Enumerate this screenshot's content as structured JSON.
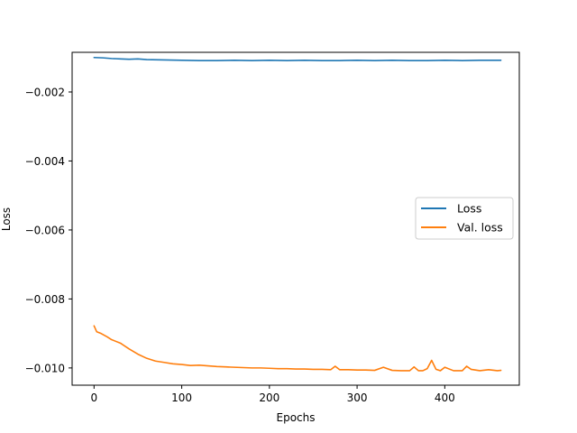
{
  "chart_data": {
    "type": "line",
    "title": "",
    "xlabel": "Epochs",
    "ylabel": "Loss",
    "xlim": [
      -25,
      485
    ],
    "ylim": [
      -0.0105,
      -0.00085
    ],
    "xticks": [
      0,
      100,
      200,
      300,
      400
    ],
    "xtick_labels": [
      "0",
      "100",
      "200",
      "300",
      "400"
    ],
    "yticks": [
      -0.002,
      -0.004,
      -0.006,
      -0.008,
      -0.01
    ],
    "ytick_labels": [
      "−0.002",
      "−0.004",
      "−0.006",
      "−0.008",
      "−0.010"
    ],
    "legend": {
      "placement": "center-right"
    },
    "grid": false,
    "series": [
      {
        "name": "Loss",
        "color": "#1f77b4",
        "x": [
          0,
          10,
          20,
          30,
          40,
          50,
          60,
          80,
          100,
          120,
          140,
          160,
          180,
          200,
          220,
          240,
          260,
          280,
          300,
          320,
          340,
          360,
          380,
          400,
          420,
          440,
          464
        ],
        "y": [
          -0.001,
          -0.00101,
          -0.00103,
          -0.00104,
          -0.00105,
          -0.00104,
          -0.00106,
          -0.00107,
          -0.00108,
          -0.00109,
          -0.00109,
          -0.00108,
          -0.00109,
          -0.00108,
          -0.00109,
          -0.00108,
          -0.00109,
          -0.00109,
          -0.00108,
          -0.00109,
          -0.00108,
          -0.00109,
          -0.00109,
          -0.00108,
          -0.00109,
          -0.00108,
          -0.00108
        ]
      },
      {
        "name": "Val. loss",
        "color": "#ff7f0e",
        "x": [
          0,
          3,
          8,
          15,
          20,
          30,
          40,
          50,
          60,
          70,
          80,
          90,
          100,
          110,
          120,
          130,
          140,
          150,
          160,
          170,
          180,
          190,
          200,
          210,
          220,
          230,
          240,
          250,
          260,
          270,
          275,
          280,
          290,
          300,
          310,
          320,
          330,
          340,
          350,
          360,
          365,
          370,
          375,
          380,
          385,
          390,
          395,
          400,
          410,
          420,
          425,
          430,
          440,
          450,
          460,
          464
        ],
        "y": [
          -0.00878,
          -0.00895,
          -0.009,
          -0.0091,
          -0.00918,
          -0.00928,
          -0.00945,
          -0.0096,
          -0.00972,
          -0.0098,
          -0.00984,
          -0.00988,
          -0.0099,
          -0.00993,
          -0.00992,
          -0.00994,
          -0.00996,
          -0.00997,
          -0.00998,
          -0.00999,
          -0.01,
          -0.01,
          -0.01001,
          -0.01002,
          -0.01002,
          -0.01003,
          -0.01003,
          -0.01004,
          -0.01004,
          -0.01005,
          -0.00995,
          -0.01005,
          -0.01005,
          -0.01006,
          -0.01006,
          -0.01007,
          -0.00998,
          -0.01007,
          -0.01008,
          -0.01008,
          -0.00997,
          -0.01008,
          -0.01008,
          -0.01002,
          -0.00978,
          -0.01004,
          -0.01008,
          -0.00998,
          -0.01008,
          -0.01008,
          -0.00995,
          -0.01004,
          -0.01008,
          -0.01005,
          -0.01008,
          -0.01007
        ]
      }
    ]
  }
}
